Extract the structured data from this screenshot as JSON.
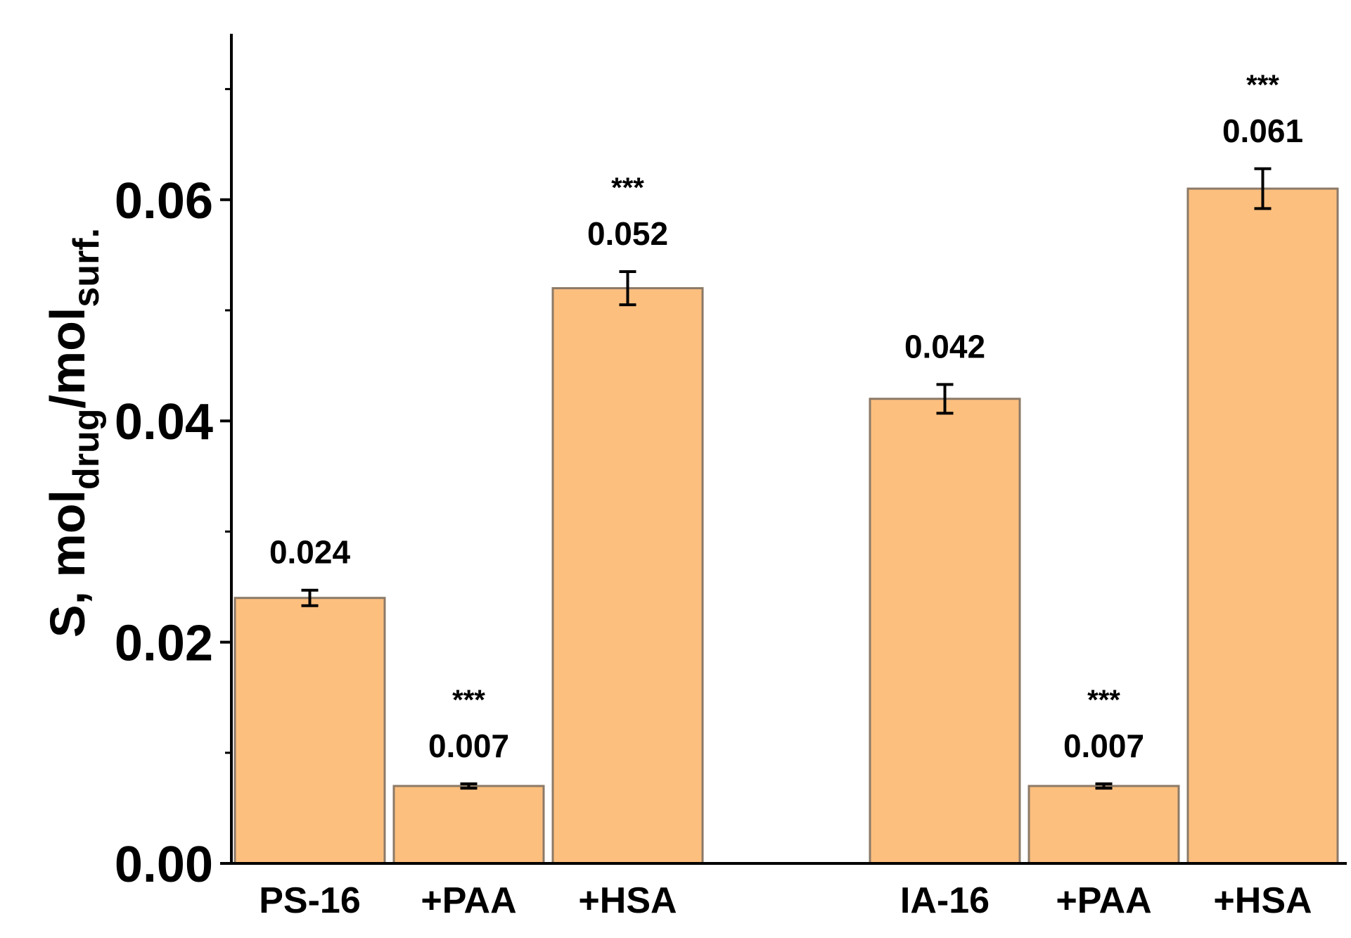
{
  "chart_data": {
    "type": "bar",
    "categories": [
      "PS-16",
      "+PAA",
      "+HSA",
      "IA-16",
      "+PAA",
      "+HSA"
    ],
    "groups": [
      {
        "name": "PS-16",
        "bar_indices": [
          0,
          1,
          2
        ]
      },
      {
        "name": "IA-16",
        "bar_indices": [
          3,
          4,
          5
        ]
      }
    ],
    "values": [
      0.024,
      0.007,
      0.052,
      0.042,
      0.007,
      0.061
    ],
    "value_labels": [
      "0.024",
      "0.007",
      "0.052",
      "0.042",
      "0.007",
      "0.061"
    ],
    "errors": [
      0.0007,
      0.0002,
      0.0015,
      0.0013,
      0.0002,
      0.0018
    ],
    "significance": [
      "",
      "***",
      "***",
      "",
      "***",
      "***"
    ],
    "ylabel": {
      "prefix": "S, mol",
      "sub1": "drug",
      "mid": "/mol",
      "sub2": "surf."
    },
    "ylim": [
      0,
      0.075
    ],
    "yticks": [
      0.0,
      0.02,
      0.04,
      0.06
    ],
    "ytick_labels": [
      "0.00",
      "0.02",
      "0.04",
      "0.06"
    ],
    "bar_color": "#FDBF7E",
    "bar_edge_color": "#8C7A68",
    "error_bar_color": "#000000"
  }
}
